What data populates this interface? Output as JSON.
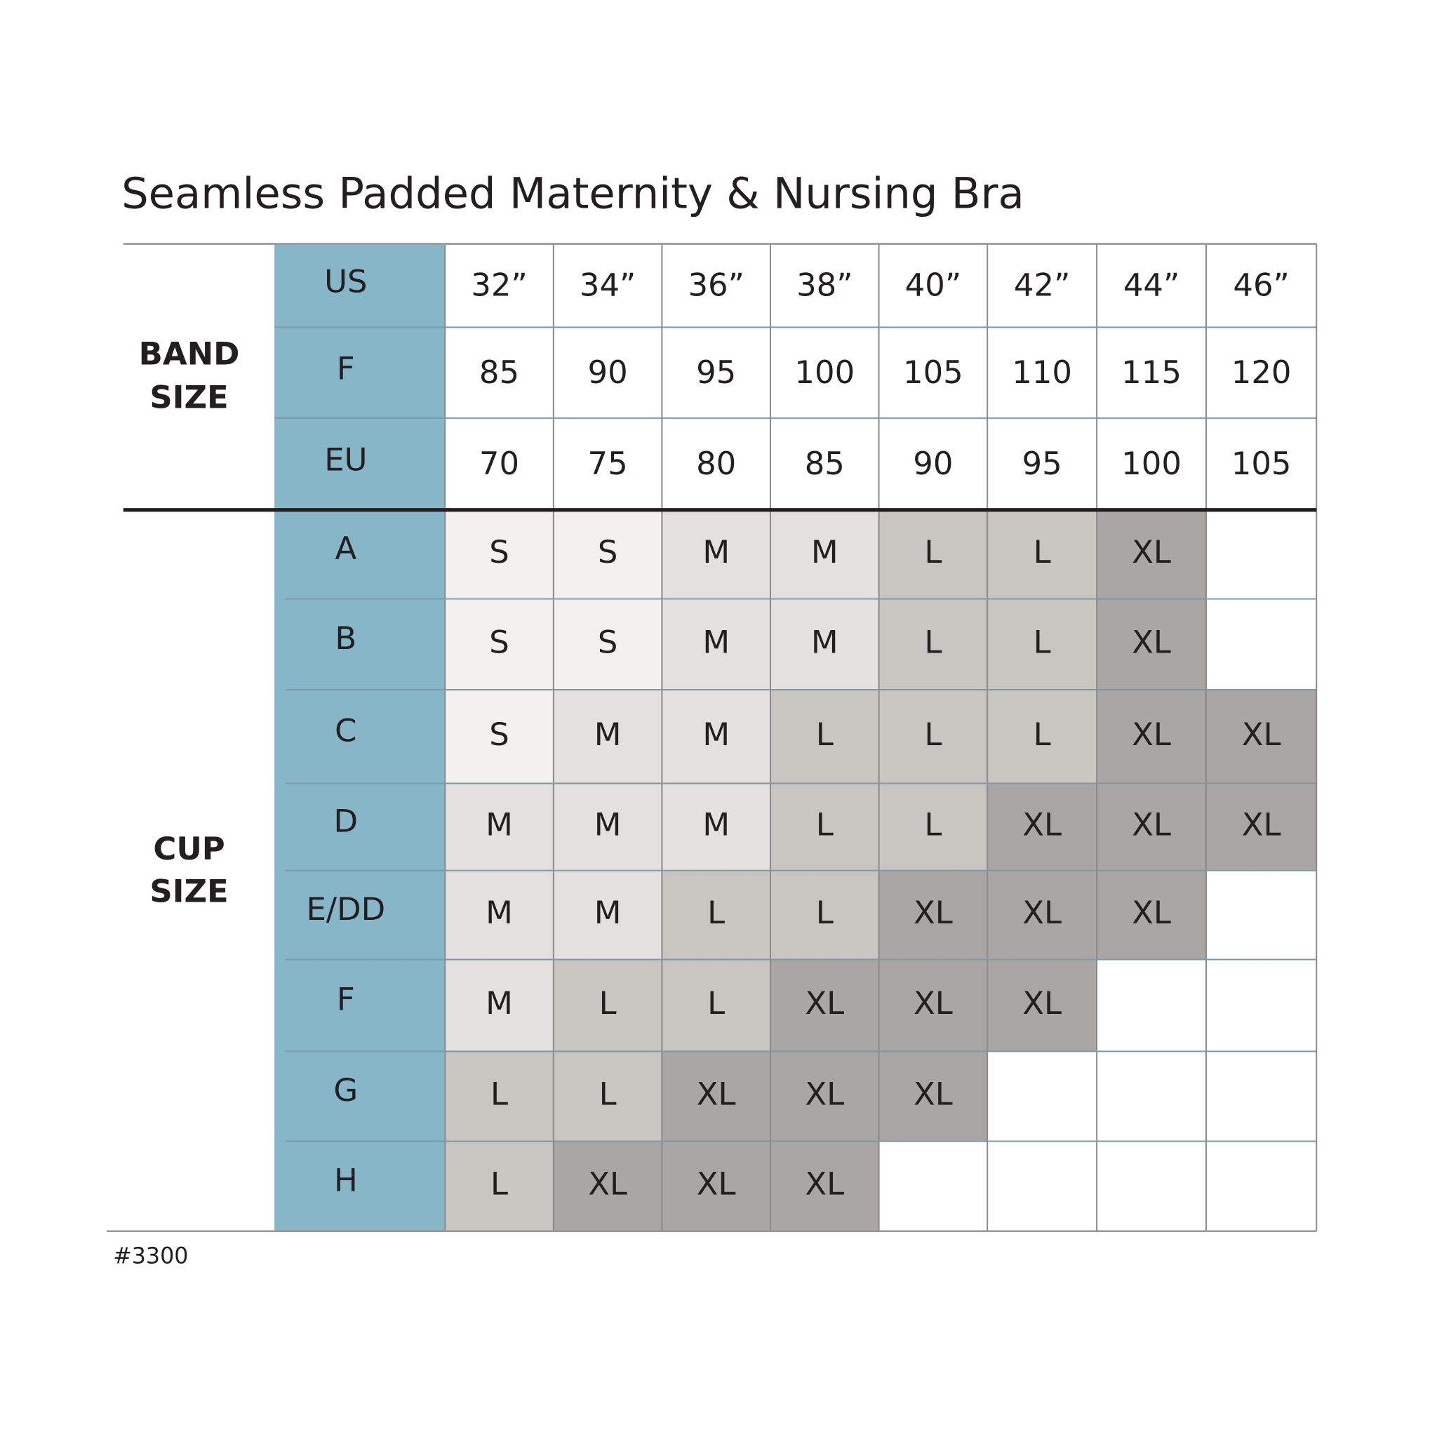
{
  "title": "Seamless Padded Maternity & Nursing Bra",
  "band_label": [
    "BAND",
    "SIZE"
  ],
  "cup_label": [
    "CUP",
    "SIZE"
  ],
  "band_rows": [
    {
      "label": "US",
      "values": [
        "32”",
        "34”",
        "36”",
        "38”",
        "40”",
        "42”",
        "44”",
        "46”"
      ]
    },
    {
      "label": "F",
      "values": [
        85,
        90,
        95,
        100,
        105,
        110,
        115,
        120
      ]
    },
    {
      "label": "EU",
      "values": [
        70,
        75,
        80,
        85,
        90,
        95,
        100,
        105
      ]
    }
  ],
  "cup_rows": [
    {
      "label": "A",
      "sizes": [
        "S",
        "S",
        "M",
        "M",
        "L",
        "L",
        "XL",
        null
      ]
    },
    {
      "label": "B",
      "sizes": [
        "S",
        "S",
        "M",
        "M",
        "L",
        "L",
        "XL",
        null
      ]
    },
    {
      "label": "C",
      "sizes": [
        "S",
        "M",
        "M",
        "L",
        "L",
        "L",
        "XL",
        "XL"
      ]
    },
    {
      "label": "D",
      "sizes": [
        "M",
        "M",
        "M",
        "L",
        "L",
        "XL",
        "XL",
        "XL"
      ]
    },
    {
      "label": "E/DD",
      "sizes": [
        "M",
        "M",
        "L",
        "L",
        "XL",
        "XL",
        "XL",
        null
      ]
    },
    {
      "label": "F",
      "sizes": [
        "M",
        "L",
        "L",
        "XL",
        "XL",
        "XL",
        null,
        null
      ]
    },
    {
      "label": "G",
      "sizes": [
        "L",
        "L",
        "XL",
        "XL",
        "XL",
        null,
        null,
        null
      ]
    },
    {
      "label": "H",
      "sizes": [
        "L",
        "XL",
        "XL",
        "XL",
        null,
        null,
        null,
        null
      ]
    }
  ],
  "size_colors": {
    "S": "#f2f1ef",
    "M": "#e3e0dd",
    "L": "#c9c5c1",
    "XL": "#aaa6a3"
  },
  "footer": "#3300"
}
